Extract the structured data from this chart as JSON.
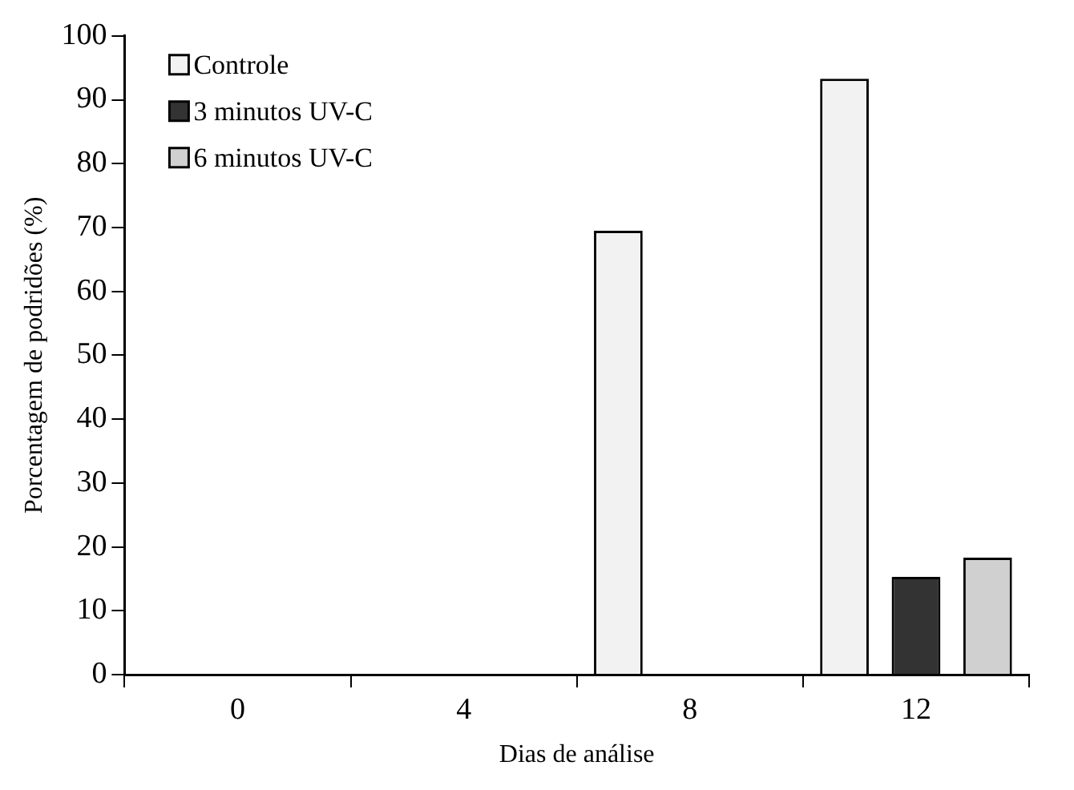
{
  "chart_data": {
    "type": "bar",
    "xlabel": "Dias de análise",
    "ylabel": "Porcentagem de podridões (%)",
    "categories": [
      "0",
      "4",
      "8",
      "12"
    ],
    "series": [
      {
        "name": "Controle",
        "color": "#f2f2f2",
        "values": [
          0,
          0,
          69.5,
          93.3
        ]
      },
      {
        "name": "3 minutos UV-C",
        "color": "#333333",
        "values": [
          0,
          0,
          0,
          15.3
        ]
      },
      {
        "name": "6 minutos UV-C",
        "color": "#d0d0d0",
        "values": [
          0,
          0,
          0,
          18.3
        ]
      }
    ],
    "ylim": [
      0,
      100
    ],
    "yticks": [
      0,
      10,
      20,
      30,
      40,
      50,
      60,
      70,
      80,
      90,
      100
    ],
    "grid": false,
    "legend": "top left"
  }
}
